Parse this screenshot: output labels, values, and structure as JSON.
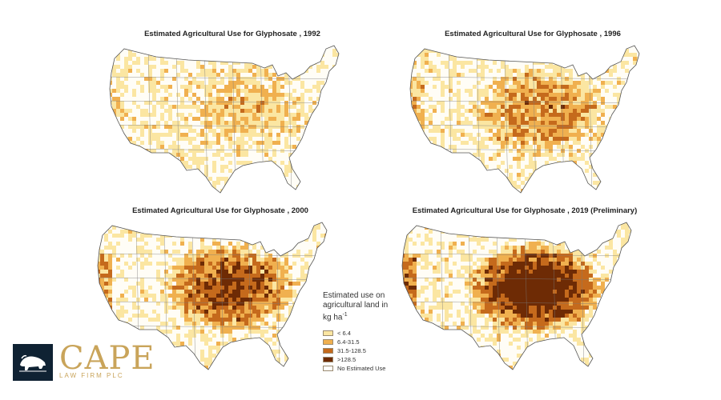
{
  "maps": [
    {
      "title": "Estimated Agricultural Use for Glyphosate , 1992",
      "year": "1992",
      "intensity": 0.25
    },
    {
      "title": "Estimated Agricultural Use for Glyphosate , 1996",
      "year": "1996",
      "intensity": 0.45
    },
    {
      "title": "Estimated Agricultural Use for Glyphosate , 2000",
      "year": "2000",
      "intensity": 0.7
    },
    {
      "title": "Estimated Agricultural Use for Glyphosate , 2019 (Preliminary)",
      "year": "2019",
      "intensity": 0.95
    }
  ],
  "legend": {
    "title_lines": [
      "Estimated use on",
      "agricultural land in",
      "kg ha"
    ],
    "title_superscript": "-1",
    "items": [
      {
        "label": "< 6.4",
        "color": "#fbe6a2"
      },
      {
        "label": "6.4-31.5",
        "color": "#f0b04f"
      },
      {
        "label": "31.5-128.5",
        "color": "#c56a1c"
      },
      {
        "label": ">128.5",
        "color": "#6e2b05"
      },
      {
        "label": "No Estimated Use",
        "color": "#ffffff"
      }
    ]
  },
  "logo": {
    "name": "CAPE",
    "subtitle": "LAW FIRM PLC",
    "icon": "bison-icon",
    "colors": {
      "box": "#0f2233",
      "text": "#c9a45a"
    }
  }
}
